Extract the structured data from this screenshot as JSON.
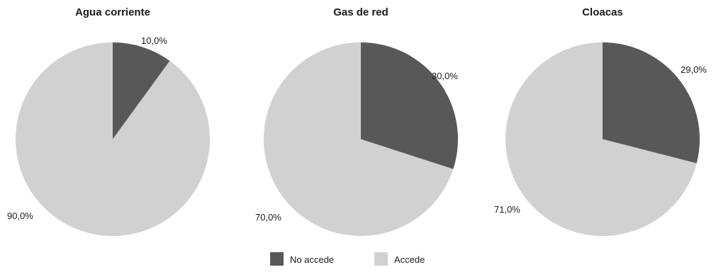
{
  "colors": {
    "no_accede": "#58585a",
    "accede": "#d0d1d3",
    "text": "#1a1a1a"
  },
  "legend": [
    {
      "key": "no_accede",
      "label": "No accede"
    },
    {
      "key": "accede",
      "label": "Accede"
    }
  ],
  "chart_data": [
    {
      "type": "pie",
      "title": "Agua corriente",
      "slices": [
        {
          "key": "no_accede",
          "label": "No accede",
          "value": 10.0,
          "display": "10,0%"
        },
        {
          "key": "accede",
          "label": "Accede",
          "value": 90.0,
          "display": "90,0%"
        }
      ],
      "legend_position": "bottom"
    },
    {
      "type": "pie",
      "title": "Gas de red",
      "slices": [
        {
          "key": "no_accede",
          "label": "No accede",
          "value": 30.0,
          "display": "30,0%"
        },
        {
          "key": "accede",
          "label": "Accede",
          "value": 70.0,
          "display": "70,0%"
        }
      ],
      "legend_position": "bottom"
    },
    {
      "type": "pie",
      "title": "Cloacas",
      "slices": [
        {
          "key": "no_accede",
          "label": "No accede",
          "value": 29.0,
          "display": "29,0%"
        },
        {
          "key": "accede",
          "label": "Accede",
          "value": 71.0,
          "display": "71,0%"
        }
      ],
      "legend_position": "bottom"
    }
  ]
}
